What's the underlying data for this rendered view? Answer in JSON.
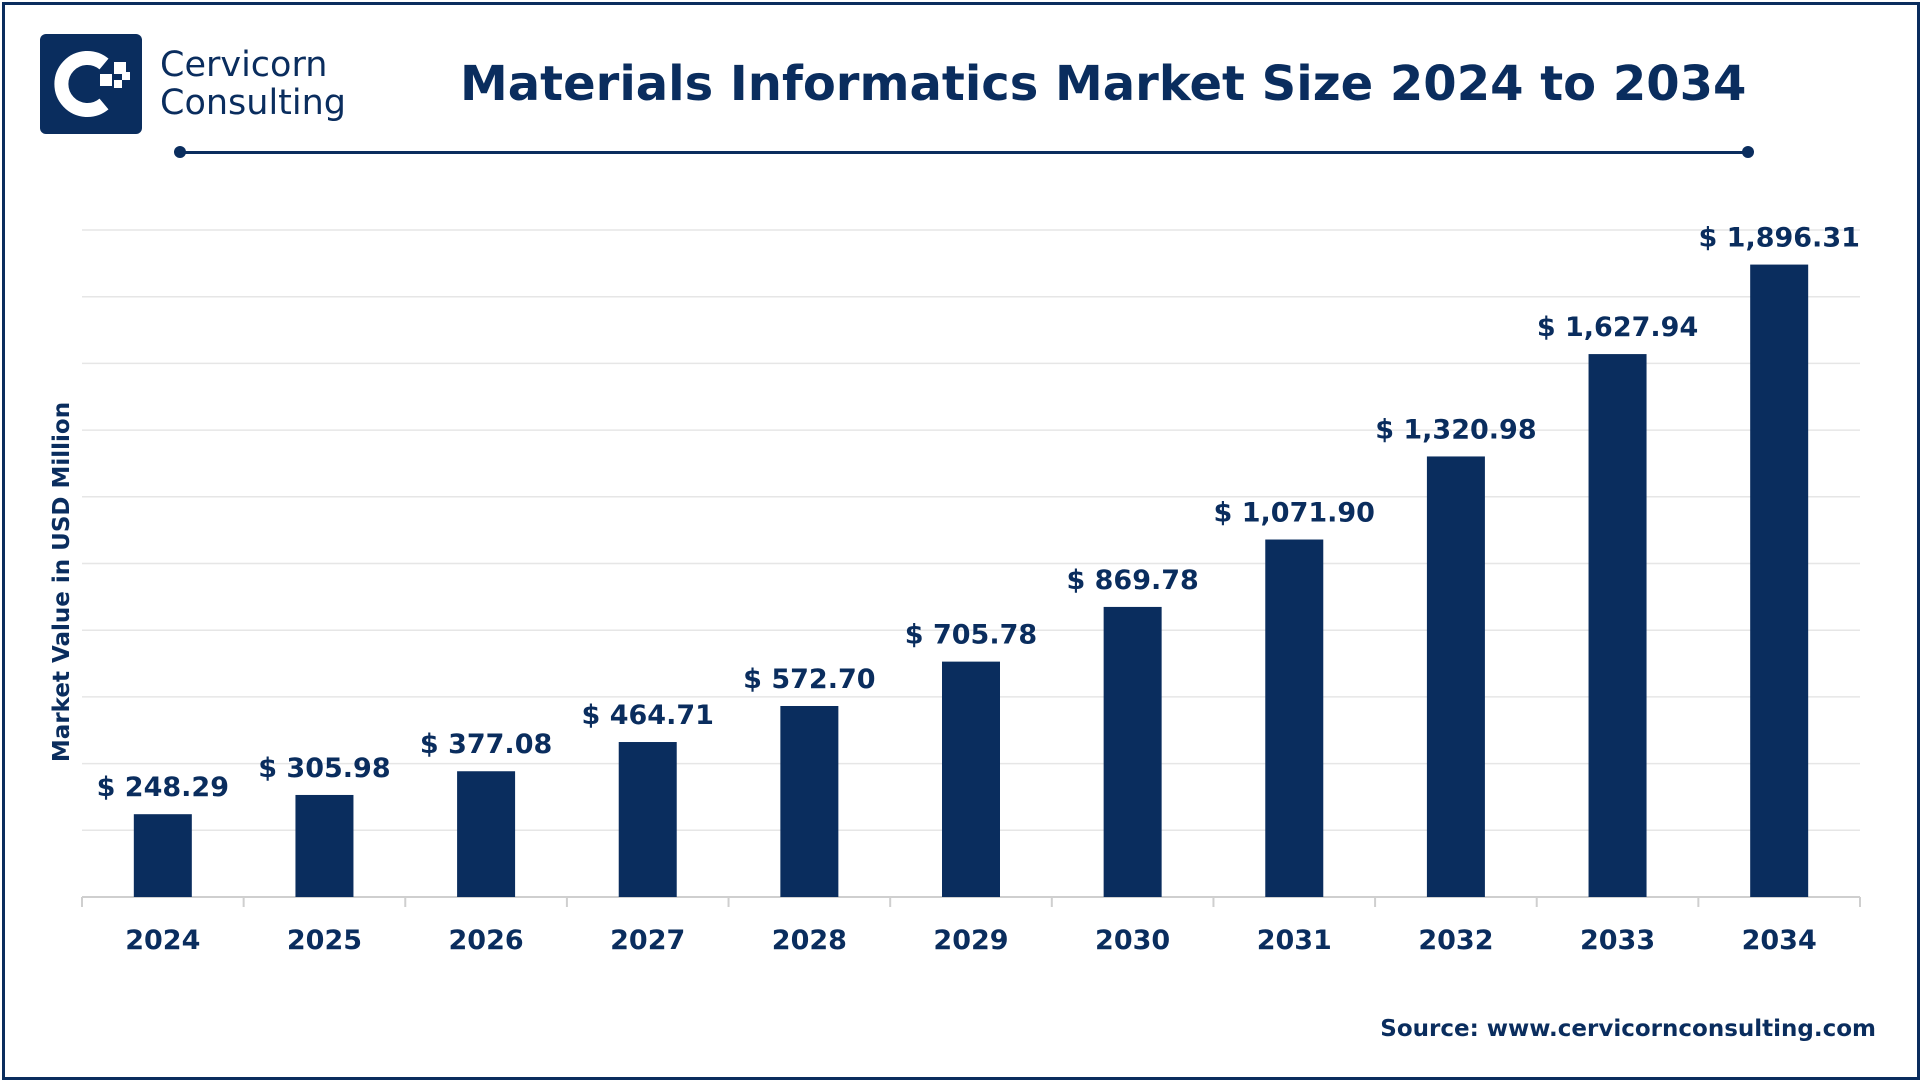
{
  "brand": {
    "line1": "Cervicorn",
    "line2": "Consulting",
    "color": "#0a2d5e"
  },
  "source": "Source: www.cervicornconsulting.com",
  "chart_data": {
    "type": "bar",
    "title": "Materials Informatics Market Size 2024 to 2034",
    "ylabel": "Market Value in USD Million",
    "xlabel": "",
    "categories": [
      "2024",
      "2025",
      "2026",
      "2027",
      "2028",
      "2029",
      "2030",
      "2031",
      "2032",
      "2033",
      "2034"
    ],
    "values": [
      248.29,
      305.98,
      377.08,
      464.71,
      572.7,
      705.78,
      869.78,
      1071.9,
      1320.98,
      1627.94,
      1896.31
    ],
    "data_labels": [
      "$ 248.29",
      "$ 305.98",
      "$ 377.08",
      "$ 464.71",
      "$ 572.70",
      "$ 705.78",
      "$ 869.78",
      "$ 1,071.90",
      "$ 1,320.98",
      "$ 1,627.94",
      "$ 1,896.31"
    ],
    "ylim": [
      0,
      2000
    ],
    "grid": true,
    "bar_color": "#0a2d5e",
    "grid_color": "#e6e6e6"
  }
}
